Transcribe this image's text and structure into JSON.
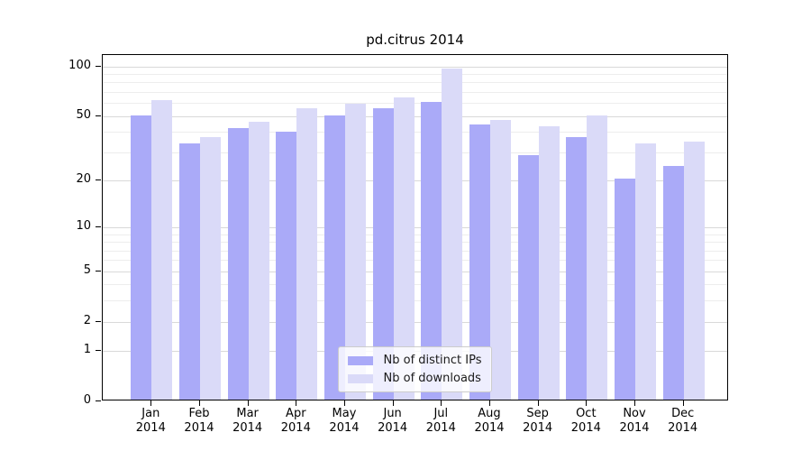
{
  "title": "pd.citrus 2014",
  "colors": {
    "distinct_ips": "#aaaaf8",
    "downloads": "#dadaf8",
    "grid_major": "#d9d9d9",
    "grid_minor": "#ededed",
    "spine": "#000000",
    "background": "#ffffff",
    "legend_border": "#cccccc"
  },
  "legend": {
    "items": [
      {
        "label": "Nb of distinct IPs"
      },
      {
        "label": "Nb of downloads"
      }
    ]
  },
  "chart_data": {
    "type": "bar",
    "title": "pd.citrus 2014",
    "categories": [
      "Jan",
      "Feb",
      "Mar",
      "Apr",
      "May",
      "Jun",
      "Jul",
      "Aug",
      "Sep",
      "Oct",
      "Nov",
      "Dec"
    ],
    "category_year": "2014",
    "series": [
      {
        "name": "Nb of distinct IPs",
        "color": "#aaaaf8",
        "values": [
          49,
          33,
          41,
          39,
          49,
          54,
          59,
          43,
          28,
          36,
          20,
          24
        ]
      },
      {
        "name": "Nb of downloads",
        "color": "#dadaf8",
        "values": [
          61,
          36,
          45,
          54,
          58,
          63,
          95,
          46,
          42,
          49,
          33,
          34
        ]
      }
    ],
    "xlabel": "",
    "ylabel": "",
    "y_axis": {
      "scale": "log1p",
      "major_ticks": [
        0,
        1,
        2,
        5,
        10,
        20,
        50,
        100
      ],
      "minor_ticks": [
        3,
        4,
        6,
        7,
        8,
        9,
        30,
        40,
        60,
        70,
        80,
        90
      ],
      "top_value": 117
    },
    "ylim": [
      0,
      117
    ],
    "grid": true,
    "legend_position": "lower center"
  }
}
